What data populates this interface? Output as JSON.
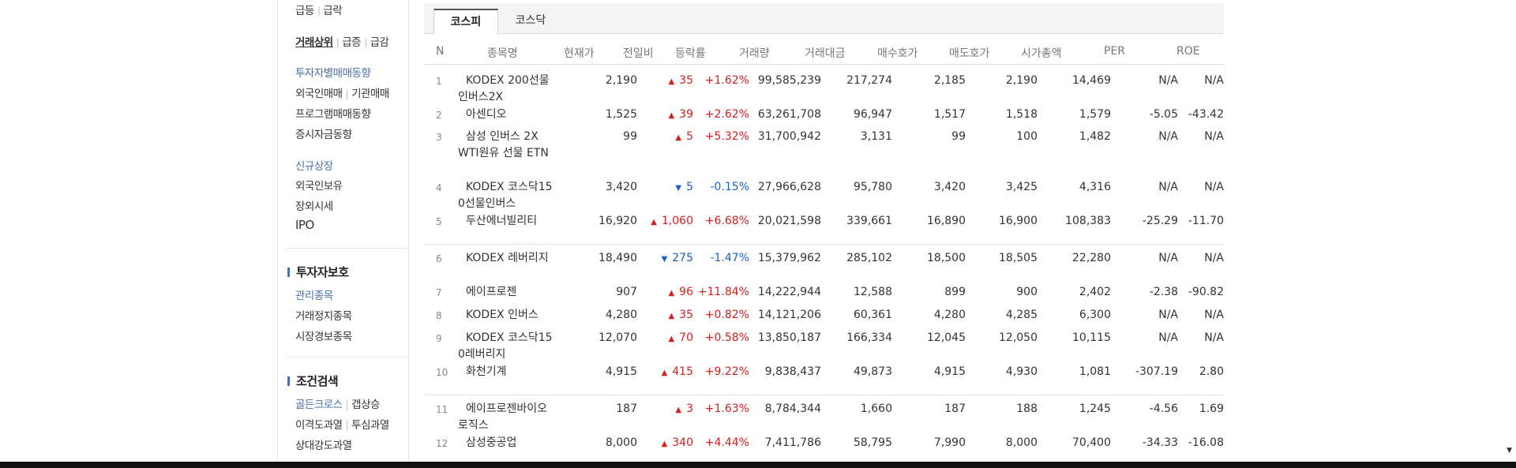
{
  "sidebar": {
    "row0": {
      "a": "급등",
      "b": "급락"
    },
    "row1": {
      "a": "거래상위",
      "b": "급증",
      "c": "급감"
    },
    "investor_trend": "투자자별매매동향",
    "row_foreign": {
      "a": "외국인매매",
      "b": "기관매매"
    },
    "program": "프로그램매매동향",
    "deposit": "증시자금동향",
    "new_listing": "신규상장",
    "foreign_hold": "외국인보유",
    "otc": "장외시세",
    "ipo": "IPO",
    "protection_header": "투자자보호",
    "managed": "관리종목",
    "suspended": "거래정지종목",
    "warning": "시장경보종목",
    "condition_header": "조건검색",
    "row_golden": {
      "a": "골든크로스",
      "b": "갭상승"
    },
    "row_deviation": {
      "a": "이격도과열",
      "b": "투심과열"
    },
    "rsi": "상대강도과열"
  },
  "tabs": [
    "코스피",
    "코스닥"
  ],
  "columns": [
    "N",
    "종목명",
    "현재가",
    "전일비",
    "등락률",
    "거래량",
    "거래대금",
    "매수호가",
    "매도호가",
    "시가총액",
    "PER",
    "ROE"
  ],
  "rows": [
    {
      "n": "1",
      "name": "KODEX 200선물인버스2X",
      "price": "2,190",
      "dir": "up",
      "change": "35",
      "rate": "+1.62%",
      "volume": "99,585,239",
      "amount": "217,274",
      "bid": "2,185",
      "ask": "2,190",
      "cap": "14,469",
      "per": "N/A",
      "roe": "N/A"
    },
    {
      "n": "2",
      "name": "아센디오",
      "price": "1,525",
      "dir": "up",
      "change": "39",
      "rate": "+2.62%",
      "volume": "63,261,708",
      "amount": "96,947",
      "bid": "1,517",
      "ask": "1,518",
      "cap": "1,579",
      "per": "-5.05",
      "roe": "-43.42"
    },
    {
      "n": "3",
      "name": "삼성 인버스 2X WTI원유 선물 ETN",
      "price": "99",
      "dir": "up",
      "change": "5",
      "rate": "+5.32%",
      "volume": "31,700,942",
      "amount": "3,131",
      "bid": "99",
      "ask": "100",
      "cap": "1,482",
      "per": "N/A",
      "roe": "N/A"
    },
    {
      "n": "4",
      "name": "KODEX 코스닥150선물인버스",
      "price": "3,420",
      "dir": "down",
      "change": "5",
      "rate": "-0.15%",
      "volume": "27,966,628",
      "amount": "95,780",
      "bid": "3,420",
      "ask": "3,425",
      "cap": "4,316",
      "per": "N/A",
      "roe": "N/A"
    },
    {
      "n": "5",
      "name": "두산에너빌리티",
      "price": "16,920",
      "dir": "up",
      "change": "1,060",
      "rate": "+6.68%",
      "volume": "20,021,598",
      "amount": "339,661",
      "bid": "16,890",
      "ask": "16,900",
      "cap": "108,383",
      "per": "-25.29",
      "roe": "-11.70"
    },
    {
      "n": "6",
      "name": "KODEX 레버리지",
      "price": "18,490",
      "dir": "down",
      "change": "275",
      "rate": "-1.47%",
      "volume": "15,379,962",
      "amount": "285,102",
      "bid": "18,500",
      "ask": "18,505",
      "cap": "22,280",
      "per": "N/A",
      "roe": "N/A"
    },
    {
      "n": "7",
      "name": "에이프로젠",
      "price": "907",
      "dir": "up",
      "change": "96",
      "rate": "+11.84%",
      "volume": "14,222,944",
      "amount": "12,588",
      "bid": "899",
      "ask": "900",
      "cap": "2,402",
      "per": "-2.38",
      "roe": "-90.82"
    },
    {
      "n": "8",
      "name": "KODEX 인버스",
      "price": "4,280",
      "dir": "up",
      "change": "35",
      "rate": "+0.82%",
      "volume": "14,121,206",
      "amount": "60,361",
      "bid": "4,280",
      "ask": "4,285",
      "cap": "6,300",
      "per": "N/A",
      "roe": "N/A"
    },
    {
      "n": "9",
      "name": "KODEX 코스닥150레버리지",
      "price": "12,070",
      "dir": "up",
      "change": "70",
      "rate": "+0.58%",
      "volume": "13,850,187",
      "amount": "166,334",
      "bid": "12,045",
      "ask": "12,050",
      "cap": "10,115",
      "per": "N/A",
      "roe": "N/A"
    },
    {
      "n": "10",
      "name": "화천기계",
      "price": "4,915",
      "dir": "up",
      "change": "415",
      "rate": "+9.22%",
      "volume": "9,838,437",
      "amount": "49,873",
      "bid": "4,915",
      "ask": "4,930",
      "cap": "1,081",
      "per": "-307.19",
      "roe": "2.80"
    },
    {
      "n": "11",
      "name": "에이프로젠바이오로직스",
      "price": "187",
      "dir": "up",
      "change": "3",
      "rate": "+1.63%",
      "volume": "8,784,344",
      "amount": "1,660",
      "bid": "187",
      "ask": "188",
      "cap": "1,245",
      "per": "-4.56",
      "roe": "1.69"
    },
    {
      "n": "12",
      "name": "삼성중공업",
      "price": "8,000",
      "dir": "up",
      "change": "340",
      "rate": "+4.44%",
      "volume": "7,411,786",
      "amount": "58,795",
      "bid": "7,990",
      "ask": "8,000",
      "cap": "70,400",
      "per": "-34.33",
      "roe": "-16.08"
    }
  ],
  "colors": {
    "up": "#d51e1e",
    "down": "#1a5fcb",
    "accent": "#4a6fae"
  }
}
